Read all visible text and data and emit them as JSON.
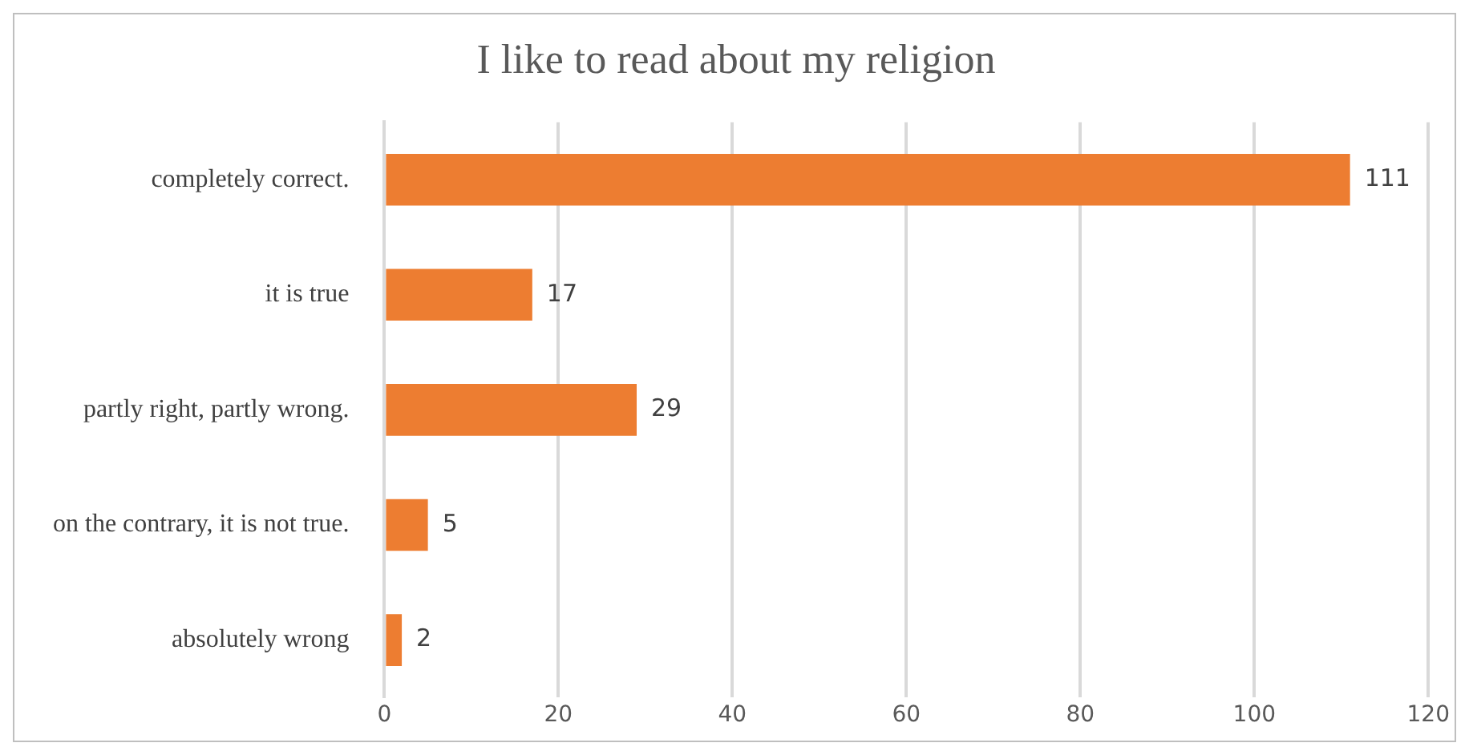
{
  "chart_data": {
    "type": "bar",
    "orientation": "horizontal",
    "title": "I like to read about my religion",
    "categories": [
      "completely correct.",
      "it is true",
      "partly right, partly wrong.",
      "on the contrary, it is not true.",
      "absolutely wrong"
    ],
    "values": [
      111,
      17,
      29,
      5,
      2
    ],
    "color": "#ed7d31",
    "xlim": [
      0,
      120
    ],
    "xticks": [
      0,
      20,
      40,
      60,
      80,
      100,
      120
    ],
    "grid": "x",
    "data_labels": true,
    "legend": false
  }
}
